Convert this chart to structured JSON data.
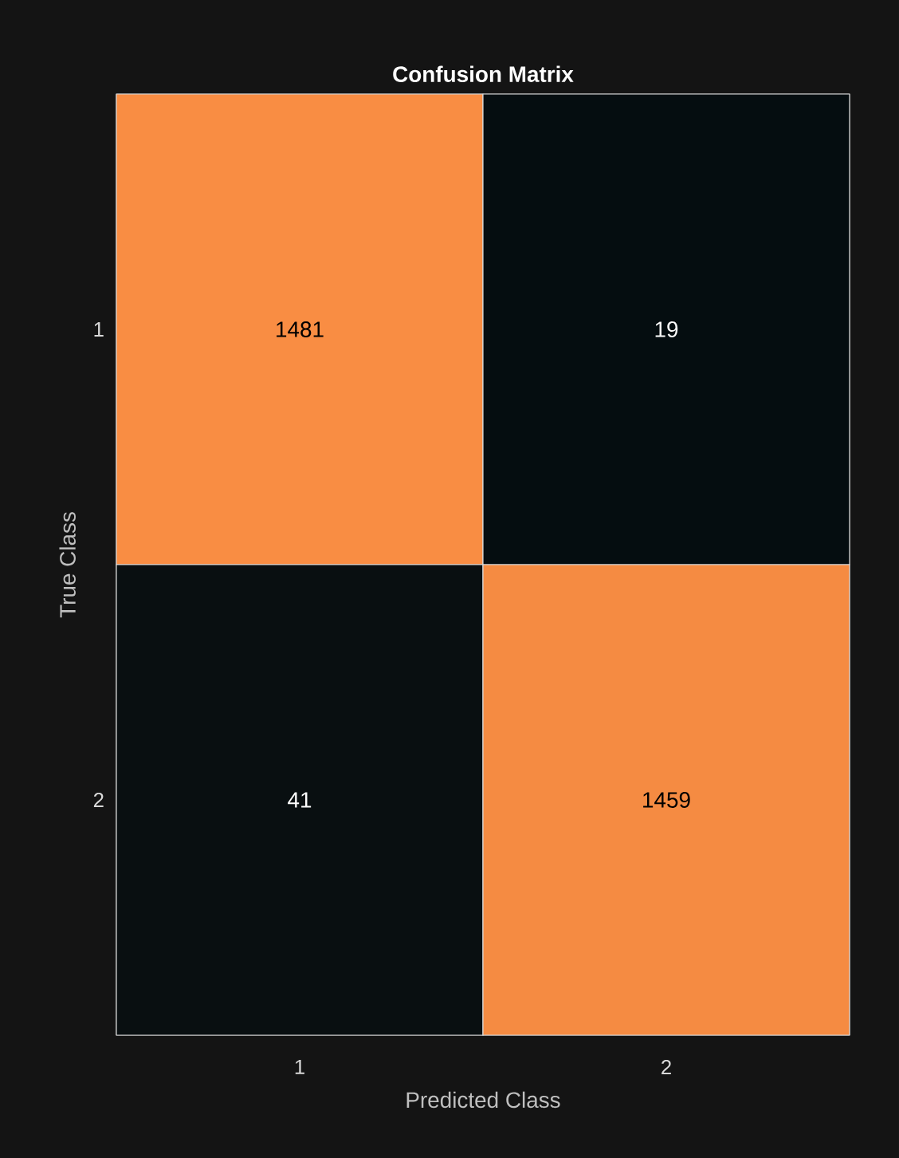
{
  "chart_data": {
    "type": "heatmap",
    "title": "Confusion Matrix",
    "xlabel": "Predicted Class",
    "ylabel": "True Class",
    "categories": [
      "1",
      "2"
    ],
    "y_categories": [
      "1",
      "2"
    ],
    "cells": [
      [
        1481,
        19
      ],
      [
        41,
        1459
      ]
    ],
    "data_labels": true
  }
}
